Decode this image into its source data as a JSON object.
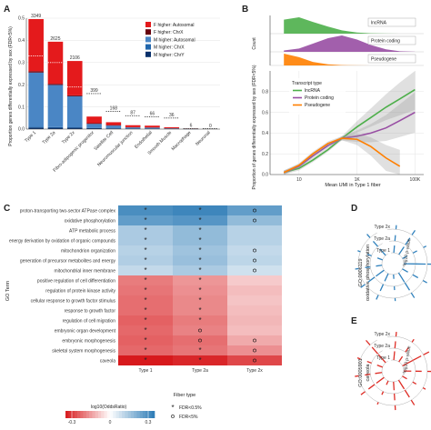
{
  "panels": {
    "a": {
      "letter": "A",
      "ylabel": "Proportion genes differentially expressed by sex (FDR<5%)"
    },
    "b": {
      "letter": "B",
      "ylabel_top": "Count",
      "ylabel": "Proportion of genes differentially expressed by sex (FDR<5%)",
      "xlabel": "Mean UMI in Type 1 fiber"
    },
    "c": {
      "letter": "C",
      "ylabel": "GO Term",
      "xlabel": "Fiber type"
    },
    "d": {
      "letter": "D",
      "go_id": "GO:0006119",
      "go_name": "oxidative phosphorylation",
      "r_label": "-log10 p-value"
    },
    "e": {
      "letter": "E",
      "go_id": "GO:0005901",
      "go_name": "caveola",
      "r_label": "-log10 p-value"
    }
  },
  "chart_data": [
    {
      "type": "bar",
      "panel": "A",
      "categories": [
        "Type 1",
        "Type 2a",
        "Type 2x",
        "Fibro-adipogenic progenitor",
        "Satellite Cell",
        "Neuromuscular junction",
        "Endothelial",
        "Smooth Muscle",
        "Macrophage",
        "Neuronal"
      ],
      "count_labels": [
        "3349",
        "2625",
        "2106",
        "399",
        "168",
        "87",
        "66",
        "36",
        "6",
        "0"
      ],
      "series": [
        {
          "name": "F higher: Autosomal",
          "color": "#e41a1c",
          "values": [
            0.235,
            0.19,
            0.155,
            0.03,
            0.013,
            0.009,
            0.008,
            0.004,
            0.0008,
            0
          ]
        },
        {
          "name": "F higher: ChrX",
          "color": "#67000d",
          "values": [
            0.006,
            0.005,
            0.004,
            0.003,
            0.002,
            0.001,
            0.001,
            0.0008,
            0.0003,
            0
          ]
        },
        {
          "name": "M higher: Autosomal",
          "color": "#4a86c5",
          "values": [
            0.245,
            0.19,
            0.14,
            0.018,
            0.012,
            0.005,
            0.004,
            0.002,
            0.0005,
            0
          ]
        },
        {
          "name": "M higher: ChrX",
          "color": "#2166ac",
          "values": [
            0.003,
            0.003,
            0.002,
            0.0015,
            0.001,
            0.0005,
            0.0005,
            0.0003,
            0.0001,
            0
          ]
        },
        {
          "name": "M higher: ChrY",
          "color": "#08306b",
          "values": [
            0.007,
            0.006,
            0.006,
            0.004,
            0.003,
            0.002,
            0.002,
            0.001,
            0.0005,
            0
          ]
        }
      ],
      "dotted_reference": [
        0.33,
        0.3,
        0.19,
        0.16,
        0.08,
        0.06,
        0.055,
        0.05,
        0.0,
        0.0
      ],
      "ylim": [
        0,
        0.5
      ],
      "yticks": [
        0.0,
        0.1,
        0.2,
        0.3,
        0.4,
        0.5
      ],
      "ytick_labels": [
        "0.0",
        "0.1",
        "0.2",
        "0.3",
        "0.4",
        "0.5"
      ],
      "legend_position": "top-right"
    },
    {
      "type": "area",
      "panel": "B-top",
      "xscale": "log",
      "x": [
        3,
        10,
        30,
        100,
        300,
        1000,
        3000,
        10000,
        30000,
        100000
      ],
      "series": [
        {
          "name": "lncRNA",
          "color": "#4daf4a",
          "values": [
            600,
            700,
            500,
            300,
            140,
            50,
            15,
            4,
            1,
            0
          ]
        },
        {
          "name": "Protein coding",
          "color": "#984ea3",
          "values": [
            50,
            120,
            300,
            500,
            600,
            450,
            250,
            90,
            20,
            3
          ]
        },
        {
          "name": "Pseudogene",
          "color": "#ff7f00",
          "values": [
            500,
            350,
            150,
            50,
            15,
            5,
            2,
            1,
            0,
            0
          ]
        }
      ]
    },
    {
      "type": "line",
      "panel": "B",
      "xscale": "log",
      "xticks": [
        10,
        1000,
        100000
      ],
      "xtick_labels": [
        "10",
        "1K",
        "100K"
      ],
      "ylim": [
        0,
        1.0
      ],
      "yticks": [
        0.0,
        0.2,
        0.4,
        0.6,
        0.8
      ],
      "ytick_labels": [
        "0.0",
        "0.2",
        "0.4",
        "0.6",
        "0.8"
      ],
      "legend_title": "Transcript type",
      "series": [
        {
          "name": "lncRNA",
          "color": "#4daf4a",
          "x": [
            3,
            10,
            30,
            100,
            300,
            1000,
            3000,
            10000,
            30000,
            100000
          ],
          "values": [
            0.02,
            0.06,
            0.14,
            0.24,
            0.35,
            0.46,
            0.55,
            0.65,
            0.73,
            0.82
          ]
        },
        {
          "name": "Protein coding",
          "color": "#984ea3",
          "x": [
            3,
            10,
            30,
            100,
            300,
            1000,
            3000,
            10000,
            30000,
            100000
          ],
          "values": [
            0.02,
            0.08,
            0.18,
            0.28,
            0.35,
            0.37,
            0.4,
            0.45,
            0.52,
            0.6
          ]
        },
        {
          "name": "Pseudogene",
          "color": "#ff7f00",
          "x": [
            3,
            10,
            30,
            100,
            300,
            1000,
            3000,
            10000,
            30000
          ],
          "values": [
            0.02,
            0.09,
            0.2,
            0.3,
            0.35,
            0.34,
            0.27,
            0.16,
            0.08
          ]
        }
      ]
    },
    {
      "type": "heatmap",
      "panel": "C",
      "columns": [
        "Type 1",
        "Type 2a",
        "Type 2x"
      ],
      "rows": [
        "proton-transporting two-sector ATPase complex",
        "oxidative phosphorylation",
        "ATP metabolic process",
        "energy derivation by oxidation of organic compounds",
        "mitochondrion organization",
        "generation of precursor metabolites and energy",
        "mitochondrial inner membrane",
        "positive regulation of cell differentiation",
        "regulation of protein kinase activity",
        "cellular response to growth factor stimulus",
        "response to growth factor",
        "regulation of cell migration",
        "embryonic organ development",
        "embryonic morphogenesis",
        "skeletal system morphogenesis",
        "caveola"
      ],
      "values": [
        [
          0.3,
          0.32,
          0.26
        ],
        [
          0.26,
          0.28,
          0.18
        ],
        [
          0.14,
          0.18,
          0.12
        ],
        [
          0.14,
          0.18,
          0.12
        ],
        [
          0.12,
          0.16,
          0.1
        ],
        [
          0.13,
          0.17,
          0.11
        ],
        [
          0.1,
          0.14,
          0.08
        ],
        [
          -0.2,
          -0.16,
          -0.08
        ],
        [
          -0.21,
          -0.17,
          -0.1
        ],
        [
          -0.22,
          -0.18,
          -0.09
        ],
        [
          -0.22,
          -0.18,
          -0.1
        ],
        [
          -0.24,
          -0.2,
          -0.11
        ],
        [
          -0.23,
          -0.19,
          -0.1
        ],
        [
          -0.24,
          -0.22,
          -0.13
        ],
        [
          -0.23,
          -0.21,
          -0.17
        ],
        [
          -0.35,
          -0.33,
          -0.28
        ]
      ],
      "significance": [
        [
          "star",
          "star",
          "circle"
        ],
        [
          "star",
          "star",
          "circle"
        ],
        [
          "star",
          "star",
          ""
        ],
        [
          "star",
          "star",
          ""
        ],
        [
          "star",
          "star",
          "circle"
        ],
        [
          "star",
          "star",
          "circle"
        ],
        [
          "star",
          "star",
          "circle"
        ],
        [
          "star",
          "star",
          ""
        ],
        [
          "star",
          "star",
          ""
        ],
        [
          "star",
          "star",
          ""
        ],
        [
          "star",
          "star",
          ""
        ],
        [
          "star",
          "star",
          ""
        ],
        [
          "star",
          "circle",
          ""
        ],
        [
          "star",
          "circle",
          "circle"
        ],
        [
          "star",
          "star",
          "circle"
        ],
        [
          "star",
          "star",
          "circle"
        ]
      ],
      "color_scale": {
        "low": "#d7191c",
        "mid": "#ffffff",
        "high": "#2c7bb6",
        "domain": [
          -0.35,
          0.35
        ]
      },
      "colorbar_title": "log10(OddsRatio)",
      "colorbar_ticks": [
        "-0.3",
        "0",
        "0.3"
      ],
      "legend": [
        {
          "symbol": "star",
          "label": "FDR<0.5%"
        },
        {
          "symbol": "circle",
          "label": "FDR<5%"
        }
      ]
    },
    {
      "type": "bar",
      "panel": "D",
      "layout": "spiral",
      "ring_labels": [
        "Type 1",
        "Type 2a",
        "Type 2x"
      ],
      "color": "#3182bd",
      "values": [
        [
          2.5,
          3.2,
          1.8,
          4.1,
          2.2,
          3.8,
          1.5,
          2.9,
          3.5,
          2.1,
          1.9,
          3.0
        ],
        [
          2.0,
          2.8,
          1.6,
          3.5,
          2.1,
          3.0,
          1.3,
          2.5,
          2.7,
          1.8,
          1.5,
          2.4
        ],
        [
          1.4,
          1.9,
          1.1,
          2.5,
          1.6,
          2.0,
          1.0,
          1.7,
          1.9,
          1.2,
          1.0,
          1.6
        ]
      ]
    },
    {
      "type": "bar",
      "panel": "E",
      "layout": "spiral",
      "ring_labels": [
        "Type 1",
        "Type 2a",
        "Type 2x"
      ],
      "color": "#de2d26",
      "values": [
        [
          3.0,
          2.2,
          4.0,
          2.6,
          1.8,
          3.6,
          2.9,
          1.5,
          3.3,
          2.4,
          2.0,
          3.8
        ],
        [
          2.4,
          1.8,
          3.2,
          2.1,
          1.4,
          2.9,
          2.3,
          1.2,
          2.6,
          1.9,
          1.6,
          3.0
        ],
        [
          1.6,
          1.2,
          2.2,
          1.4,
          1.0,
          2.0,
          1.6,
          0.8,
          1.8,
          1.3,
          1.1,
          2.1
        ]
      ]
    }
  ]
}
